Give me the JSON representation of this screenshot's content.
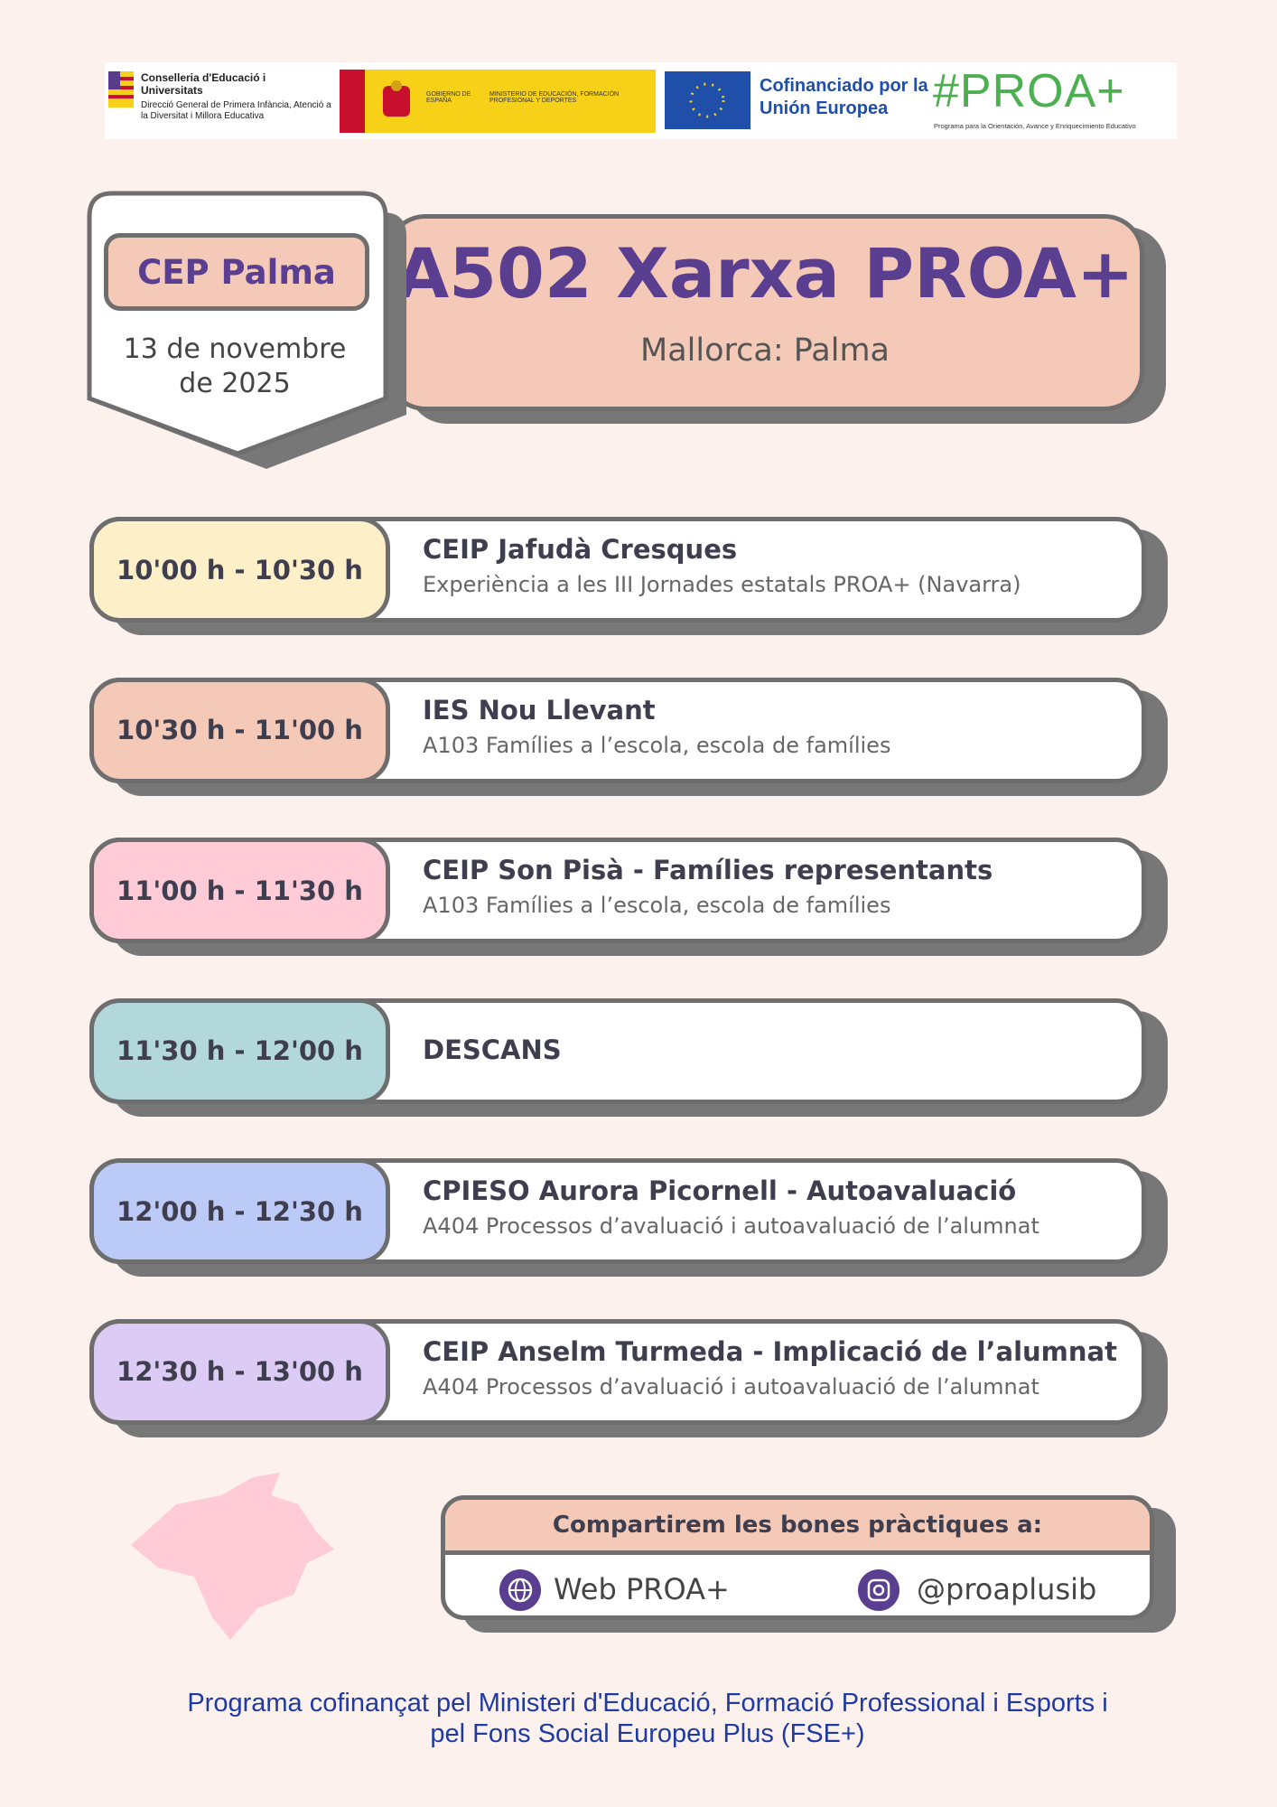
{
  "header": {
    "conselleria": "Conselleria d'Educació i Universitats",
    "direccio": "Direcció General de Primera Infància, Atenció a la Diversitat i Millora Educativa",
    "gobierno": "GOBIERNO DE ESPAÑA",
    "ministerio": "MINISTERIO DE EDUCACIÓN, FORMACIÓN PROFESIONAL Y DEPORTES",
    "eu": "Cofinanciado por la Unión Europea",
    "proa": "#PROA+",
    "proa_sub": "Programa para la Orientación, Avance y Enriquecimiento Educativo"
  },
  "event": {
    "center": "CEP Palma",
    "date": "13 de novembre de 2025",
    "title": "A502 Xarxa PROA+",
    "place": "Mallorca: Palma"
  },
  "schedule": [
    {
      "time": "10'00 h - 10'30 h",
      "title": "CEIP Jafudà Cresques",
      "subtitle": "Experiència a les III Jornades estatals PROA+ (Navarra)"
    },
    {
      "time": "10'30 h - 11'00 h",
      "title": "IES Nou Llevant",
      "subtitle": "A103 Famílies a l’escola, escola de famílies"
    },
    {
      "time": "11'00 h - 11'30 h",
      "title": "CEIP Son Pisà - Famílies representants",
      "subtitle": "A103 Famílies a l’escola, escola de famílies"
    },
    {
      "time": "11'30 h - 12'00 h",
      "title": "DESCANS"
    },
    {
      "time": "12'00 h - 12'30 h",
      "title": "CPIESO Aurora Picornell - Autoavaluació",
      "subtitle": "A404 Processos d’avaluació i autoavaluació de l’alumnat"
    },
    {
      "time": "12'30 h - 13'00 h",
      "title": "CEIP Anselm Turmeda - Implicació de l’alumnat",
      "subtitle": "A404 Processos d’avaluació i autoavaluació de l’alumnat"
    }
  ],
  "share": {
    "heading": "Compartirem les bones pràctiques a:",
    "web": "Web PROA+",
    "instagram": "@proaplusib"
  },
  "footer": "Programa cofinançat pel Ministeri d'Educació, Formació Professional i Esports i pel Fons Social Europeu Plus (FSE+)"
}
